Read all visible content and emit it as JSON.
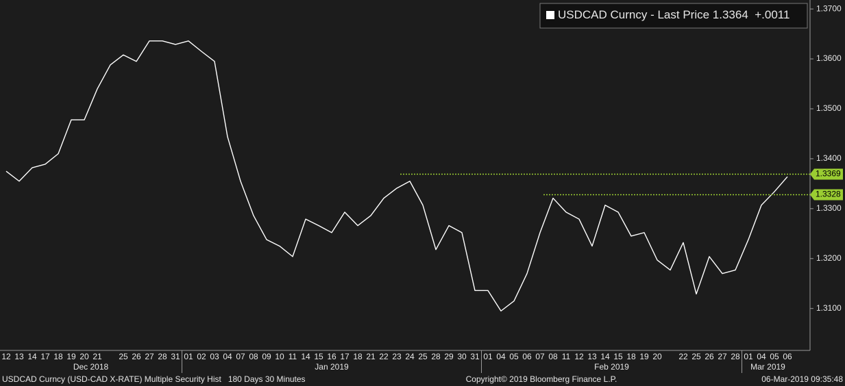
{
  "chart_data": {
    "type": "line",
    "series": [
      {
        "name": "USDCAD Curncy - Last Price",
        "color": "#ffffff",
        "values": [
          1.3375,
          1.3355,
          1.3382,
          1.3389,
          1.341,
          1.3478,
          1.3478,
          1.354,
          1.3588,
          1.3608,
          1.3595,
          1.3636,
          1.3636,
          1.3629,
          1.3636,
          1.3615,
          1.3595,
          1.3444,
          1.3355,
          1.3286,
          1.3238,
          1.3225,
          1.3204,
          1.3279,
          1.3266,
          1.3252,
          1.3293,
          1.3266,
          1.3286,
          1.3321,
          1.3341,
          1.3355,
          1.3307,
          1.3218,
          1.3266,
          1.3252,
          1.3136,
          1.3136,
          1.3095,
          1.3115,
          1.317,
          1.3252,
          1.3321,
          1.3293,
          1.3279,
          1.3225,
          1.3307,
          1.3293,
          1.3245,
          1.3252,
          1.3197,
          1.3177,
          1.3232,
          1.3129,
          1.3204,
          1.317,
          1.3177,
          1.3238,
          1.3307,
          1.3334,
          1.3364
        ]
      }
    ],
    "last_price": 1.3364,
    "change": {
      "value": 0.0011,
      "label": "+.0011"
    },
    "categories": [
      "12",
      "13",
      "14",
      "17",
      "18",
      "19",
      "20",
      "21",
      null,
      "25",
      "26",
      "27",
      "28",
      "31",
      "01",
      "02",
      "03",
      "04",
      "07",
      "08",
      "09",
      "10",
      "11",
      "14",
      "15",
      "16",
      "17",
      "18",
      "21",
      "22",
      "23",
      "24",
      "25",
      "28",
      "29",
      "30",
      "31",
      "01",
      "04",
      "05",
      "06",
      "07",
      "08",
      "11",
      "12",
      "13",
      "14",
      "15",
      "18",
      "19",
      "20",
      null,
      "22",
      "25",
      "26",
      "27",
      "28",
      "01",
      "04",
      "05",
      "06"
    ],
    "months": [
      "Dec 2018",
      "Jan 2019",
      "Feb 2019",
      "Mar 2019"
    ],
    "ylim": [
      1.3016,
      1.3718
    ],
    "yticks": [
      {
        "value": 1.31,
        "label": "1.3100"
      },
      {
        "value": 1.32,
        "label": "1.3200"
      },
      {
        "value": 1.33,
        "label": "1.3300"
      },
      {
        "value": 1.34,
        "label": "1.3400"
      },
      {
        "value": 1.35,
        "label": "1.3500"
      },
      {
        "value": 1.36,
        "label": "1.3600"
      },
      {
        "value": 1.37,
        "label": "1.3700"
      }
    ],
    "hlines": [
      {
        "value": 1.3369,
        "label": "1.3369",
        "color": "#9acd32"
      },
      {
        "value": 1.3328,
        "label": "1.3328",
        "color": "#9acd32"
      }
    ],
    "footer": {
      "left": "USDCAD Curncy (USD-CAD X-RATE) Multiple Security Hist   180 Days 30 Minutes",
      "center": "Copyright© 2019 Bloomberg Finance L.P.",
      "right": "06-Mar-2019 09:35:48"
    }
  }
}
